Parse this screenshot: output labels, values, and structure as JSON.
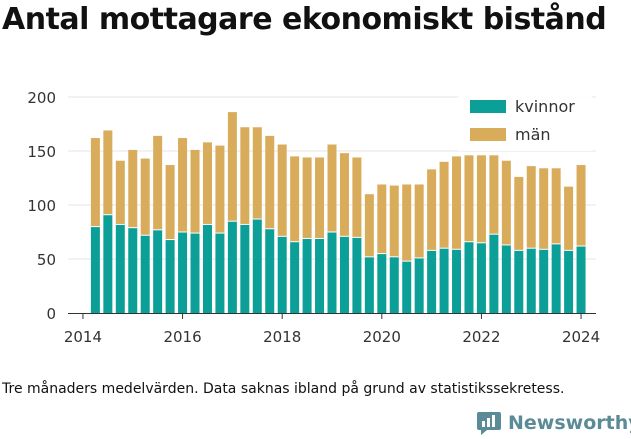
{
  "title": "Antal mottagare ekonomiskt bistånd",
  "footnote": "Tre månaders medelvärden. Data saknas ibland på grund av statistikssekretess.",
  "brand": "Newsworthy",
  "colors": {
    "kvinnor": "#0b9f98",
    "man": "#d8ac5b",
    "grid": "#e6e6e6",
    "brand": "#5b8b97"
  },
  "chart_data": {
    "type": "bar",
    "stacked": true,
    "title": "Antal mottagare ekonomiskt bistånd",
    "xlabel": "",
    "ylabel": "",
    "ylim": [
      0,
      210
    ],
    "yticks": [
      0,
      50,
      100,
      150,
      200
    ],
    "xlim": [
      2013.7,
      2024.3
    ],
    "xticks": [
      2014,
      2016,
      2018,
      2020,
      2022,
      2024
    ],
    "legend": {
      "placement": "top-right"
    },
    "x": [
      2014.25,
      2014.5,
      2014.75,
      2015.0,
      2015.25,
      2015.5,
      2015.75,
      2016.0,
      2016.25,
      2016.5,
      2016.75,
      2017.0,
      2017.25,
      2017.5,
      2017.75,
      2018.0,
      2018.25,
      2018.5,
      2018.75,
      2019.0,
      2019.25,
      2019.5,
      2019.75,
      2020.0,
      2020.25,
      2020.5,
      2020.75,
      2021.0,
      2021.25,
      2021.5,
      2021.75,
      2022.0,
      2022.25,
      2022.5,
      2022.75,
      2023.0,
      2023.25,
      2023.5,
      2023.75,
      2024.0
    ],
    "series": [
      {
        "name": "kvinnor",
        "values": [
          80,
          91,
          82,
          79,
          72,
          77,
          68,
          75,
          74,
          82,
          74,
          85,
          82,
          87,
          78,
          71,
          66,
          69,
          69,
          75,
          71,
          70,
          52,
          55,
          52,
          48,
          51,
          58,
          60,
          59,
          66,
          65,
          73,
          63,
          58,
          60,
          59,
          64,
          58,
          62
        ]
      },
      {
        "name": "män",
        "values": [
          82,
          78,
          59,
          72,
          71,
          87,
          69,
          87,
          77,
          76,
          81,
          101,
          90,
          85,
          86,
          85,
          79,
          75,
          75,
          81,
          77,
          74,
          58,
          64,
          66,
          71,
          68,
          75,
          80,
          86,
          80,
          81,
          73,
          78,
          68,
          76,
          75,
          70,
          59,
          75
        ]
      }
    ]
  }
}
